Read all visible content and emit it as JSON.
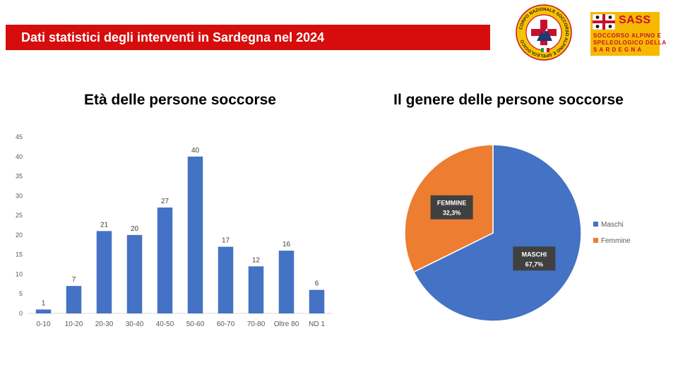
{
  "header": {
    "title": "Dati statistici degli interventi in Sardegna nel 2024"
  },
  "logos": {
    "cnsas": {
      "ring_text": "CORPO NAZIONALE SOCCORSO ALPINO E SPELEOLOGICO"
    },
    "sass": {
      "acronym": "SASS",
      "line1": "SOCCORSO ALPINO E",
      "line2": "SPELEOLOGICO DELLA",
      "line3": "SARDEGNA"
    }
  },
  "colors": {
    "banner": "#d70c0c",
    "bar": "#4472c4",
    "maschi": "#4472c4",
    "femmine": "#ed7d31"
  },
  "chart_data": [
    {
      "type": "bar",
      "title": "Età delle persone soccorse",
      "categories": [
        "0-10",
        "10-20",
        "20-30",
        "30-40",
        "40-50",
        "50-60",
        "60-70",
        "70-80",
        "Oltre 80",
        "ND 1"
      ],
      "values": [
        1,
        7,
        21,
        20,
        27,
        40,
        17,
        12,
        16,
        6
      ],
      "ylim": [
        0,
        45
      ],
      "yticks": [
        0,
        5,
        10,
        15,
        20,
        25,
        30,
        35,
        40,
        45
      ],
      "grid": false,
      "data_labels": true
    },
    {
      "type": "pie",
      "title": "Il genere delle persone soccorse",
      "labels": [
        "Maschi",
        "Femmine"
      ],
      "slice_labels": [
        "MASCHI",
        "FEMMINE"
      ],
      "values": [
        67.7,
        32.3
      ],
      "value_labels": [
        "67,7%",
        "32,3%"
      ],
      "legend_position": "right"
    }
  ]
}
